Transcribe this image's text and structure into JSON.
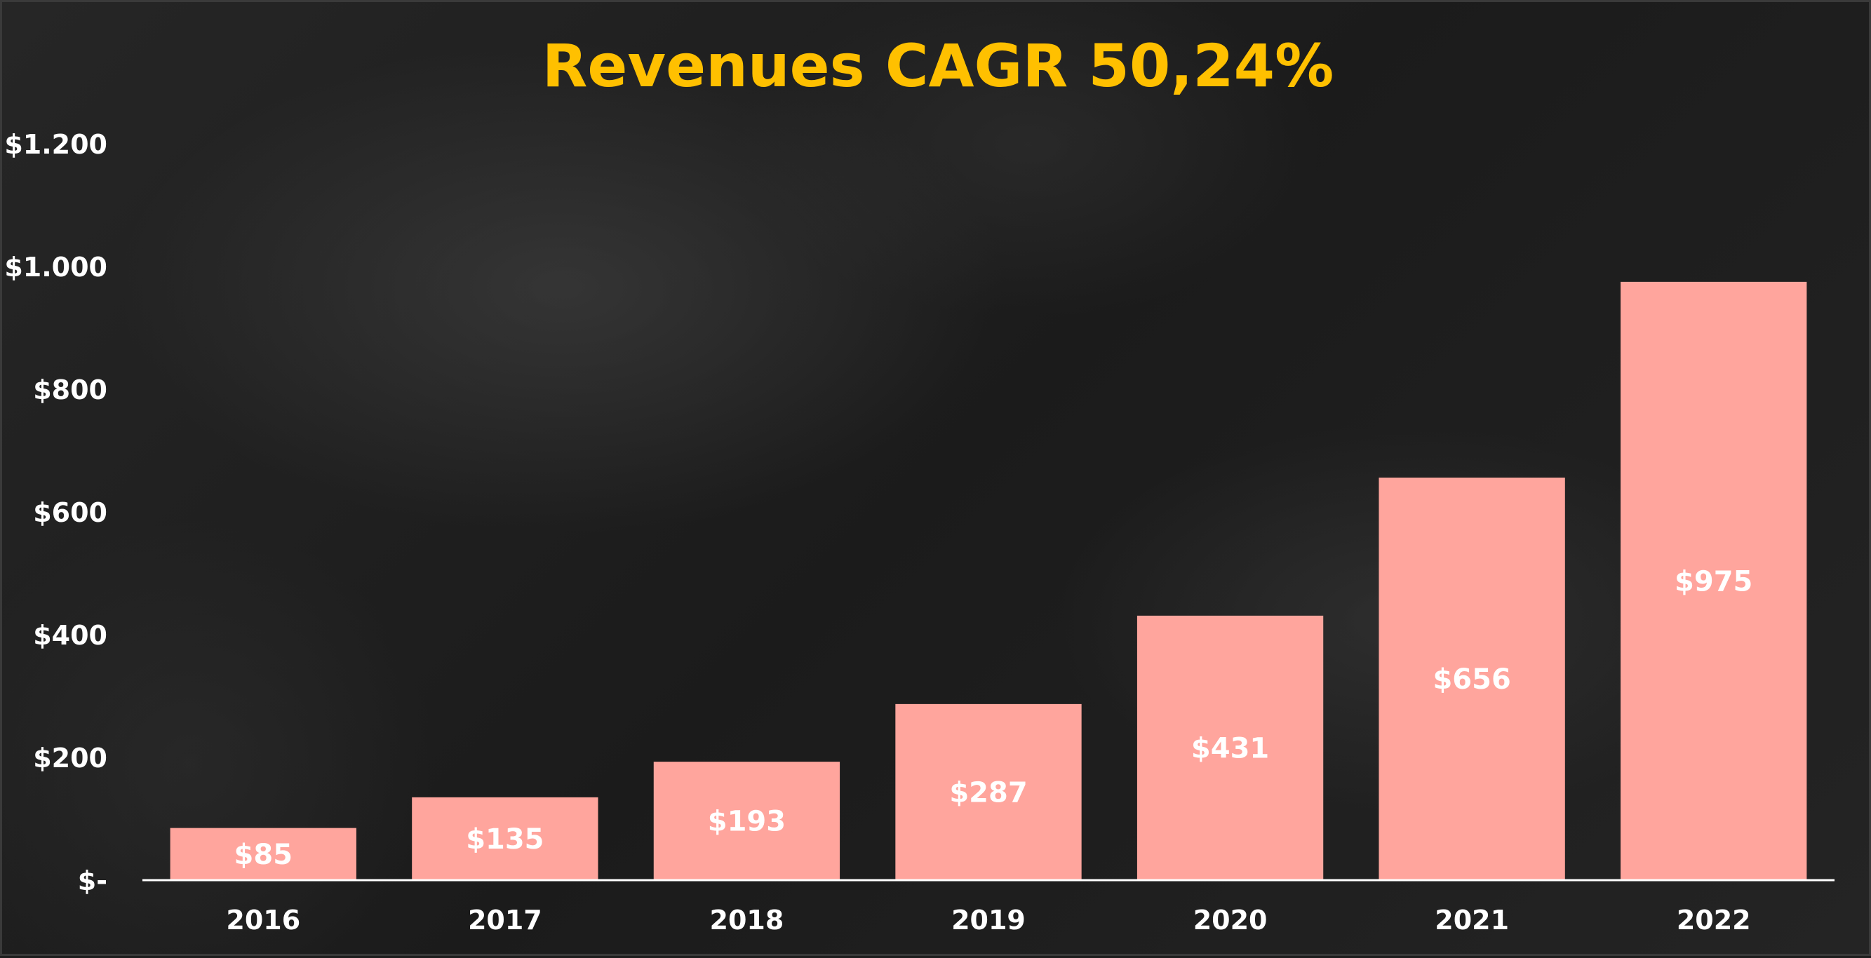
{
  "chart_data": {
    "type": "bar",
    "title": "Revenues CAGR 50,24%",
    "xlabel": "",
    "ylabel": "",
    "categories": [
      "2016",
      "2017",
      "2018",
      "2019",
      "2020",
      "2021",
      "2022"
    ],
    "values": [
      85,
      135,
      193,
      287,
      431,
      656,
      975
    ],
    "value_labels": [
      "$85",
      "$135",
      "$193",
      "$287",
      "$431",
      "$656",
      "$975"
    ],
    "ylim": [
      0,
      1200
    ],
    "yticks": [
      0,
      200,
      400,
      600,
      800,
      1000,
      1200
    ],
    "ytick_labels": [
      "$-",
      "$200",
      "$400",
      "$600",
      "$800",
      "$1.000",
      "$1.200"
    ],
    "grid": false,
    "legend": "none",
    "colors": {
      "bar": "#FFA59D",
      "title": "#FFC000",
      "text": "#FFFFFF",
      "axis": "#FFFFFF",
      "background": "#1E1E1E"
    }
  }
}
